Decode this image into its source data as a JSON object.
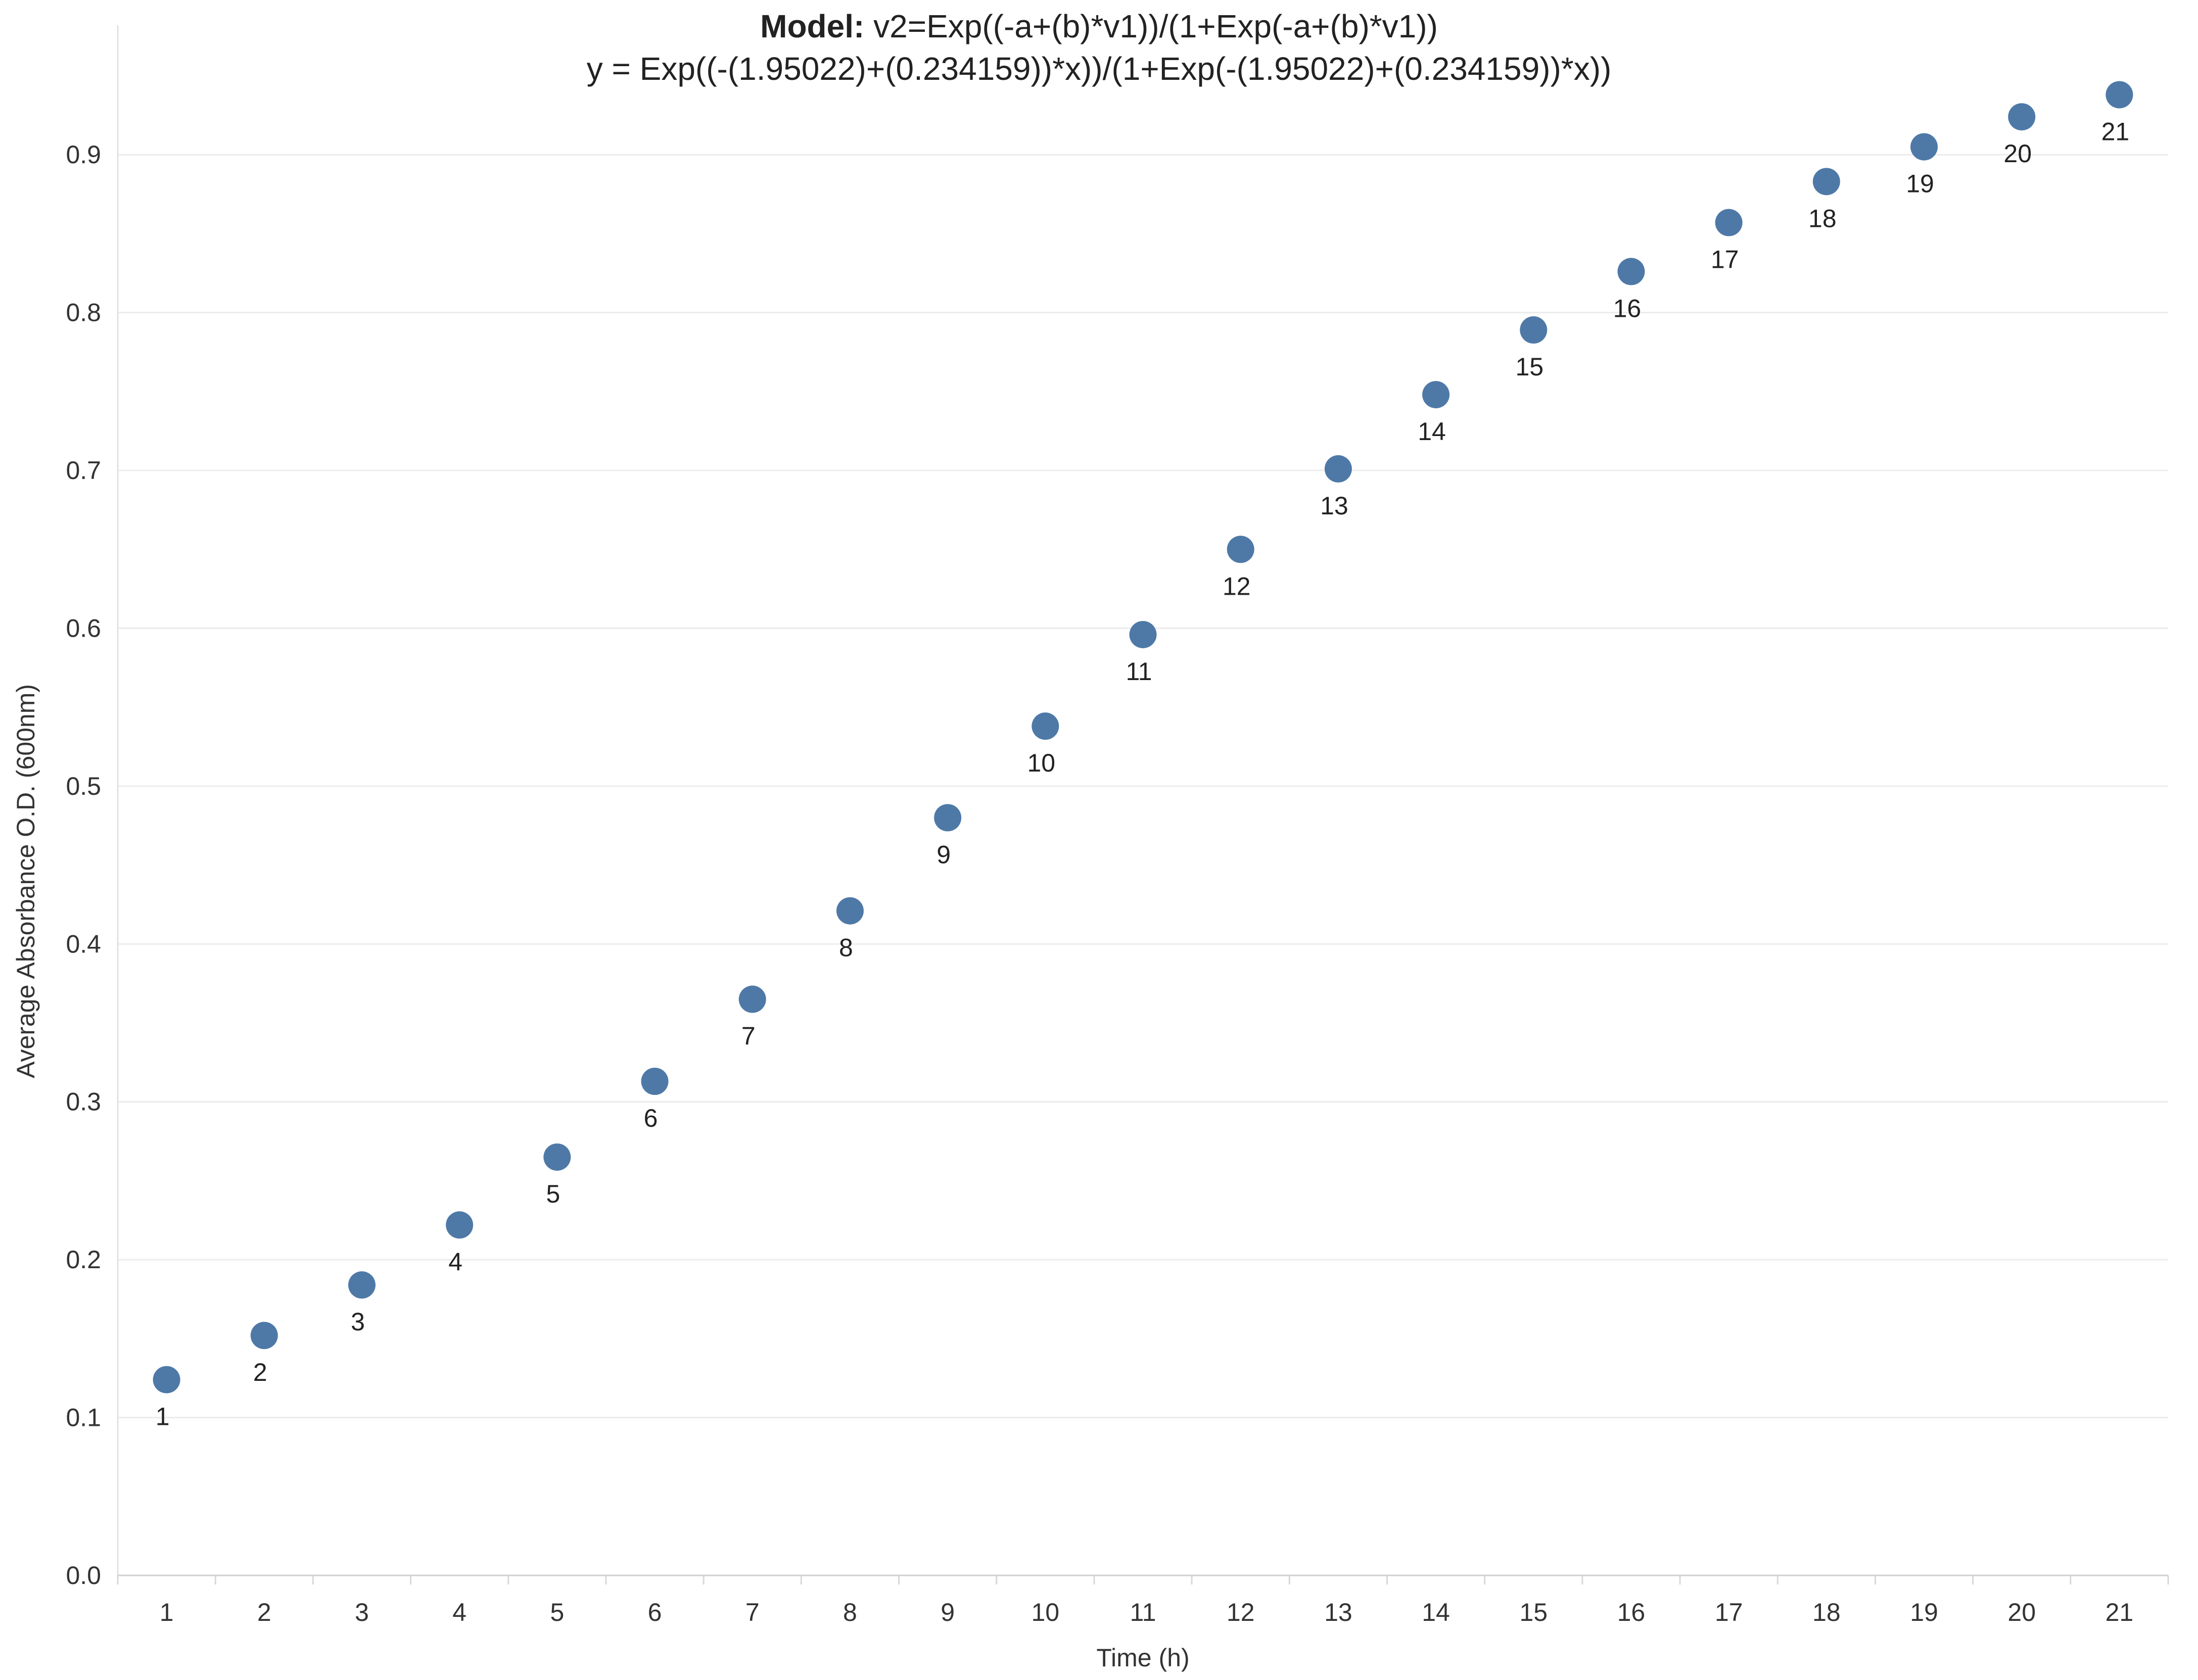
{
  "title": {
    "label": "Model:",
    "formula": " v2=Exp((-a+(b)*v1))/(1+Exp(-a+(b)*v1))",
    "equation": "y = Exp((-(1.95022)+(0.234159))*x))/(1+Exp(-(1.95022)+(0.234159))*x))"
  },
  "chart_data": {
    "type": "scatter",
    "xlabel": "Time (h)",
    "ylabel": "Average Absorbance O.D. (600nm)",
    "x_ticks": [
      1,
      2,
      3,
      4,
      5,
      6,
      7,
      8,
      9,
      10,
      11,
      12,
      13,
      14,
      15,
      16,
      17,
      18,
      19,
      20,
      21
    ],
    "y_ticks": [
      "0.0",
      "0.1",
      "0.2",
      "0.3",
      "0.4",
      "0.5",
      "0.6",
      "0.7",
      "0.8",
      "0.9"
    ],
    "xlim": [
      0.5,
      21.5
    ],
    "ylim": [
      0.0,
      0.95
    ],
    "grid": true,
    "marker_color": "#4e79a7",
    "points": [
      {
        "x": 1,
        "y": 0.124,
        "label": "1"
      },
      {
        "x": 2,
        "y": 0.152,
        "label": "2"
      },
      {
        "x": 3,
        "y": 0.184,
        "label": "3"
      },
      {
        "x": 4,
        "y": 0.222,
        "label": "4"
      },
      {
        "x": 5,
        "y": 0.265,
        "label": "5"
      },
      {
        "x": 6,
        "y": 0.313,
        "label": "6"
      },
      {
        "x": 7,
        "y": 0.365,
        "label": "7"
      },
      {
        "x": 8,
        "y": 0.421,
        "label": "8"
      },
      {
        "x": 9,
        "y": 0.48,
        "label": "9"
      },
      {
        "x": 10,
        "y": 0.538,
        "label": "10"
      },
      {
        "x": 11,
        "y": 0.596,
        "label": "11"
      },
      {
        "x": 12,
        "y": 0.65,
        "label": "12"
      },
      {
        "x": 13,
        "y": 0.701,
        "label": "13"
      },
      {
        "x": 14,
        "y": 0.748,
        "label": "14"
      },
      {
        "x": 15,
        "y": 0.789,
        "label": "15"
      },
      {
        "x": 16,
        "y": 0.826,
        "label": "16"
      },
      {
        "x": 17,
        "y": 0.857,
        "label": "17"
      },
      {
        "x": 18,
        "y": 0.883,
        "label": "18"
      },
      {
        "x": 19,
        "y": 0.905,
        "label": "19"
      },
      {
        "x": 20,
        "y": 0.924,
        "label": "20"
      },
      {
        "x": 21,
        "y": 0.938,
        "label": "21"
      }
    ]
  }
}
